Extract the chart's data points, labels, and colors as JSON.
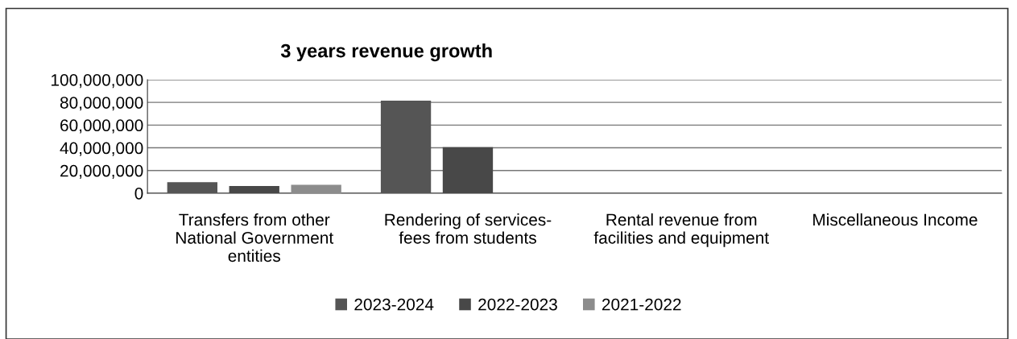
{
  "chart_data": {
    "type": "bar",
    "title": "3 years revenue growth",
    "categories": [
      "Transfers from other\nNational Government\nentities",
      "Rendering of services-\nfees from students",
      "Rental revenue from\nfacilities and equipment",
      "Miscellaneous Income"
    ],
    "series": [
      {
        "name": "2023-2024",
        "color": "#555555",
        "values": [
          9700000,
          81500000,
          0,
          0
        ]
      },
      {
        "name": "2022-2023",
        "color": "#484848",
        "values": [
          6400000,
          40500000,
          0,
          0
        ]
      },
      {
        "name": "2021-2022",
        "color": "#8c8c8c",
        "values": [
          7400000,
          0,
          0,
          0
        ]
      }
    ],
    "ylim": [
      0,
      100000000
    ],
    "yticks": [
      {
        "value": 0,
        "label": "0"
      },
      {
        "value": 20000000,
        "label": "20,000,000"
      },
      {
        "value": 40000000,
        "label": "40,000,000"
      },
      {
        "value": 60000000,
        "label": "60,000,000"
      },
      {
        "value": 80000000,
        "label": "80,000,000"
      },
      {
        "value": 100000000,
        "label": "100,000,000"
      }
    ],
    "grid": "y",
    "legend": "bottom"
  }
}
